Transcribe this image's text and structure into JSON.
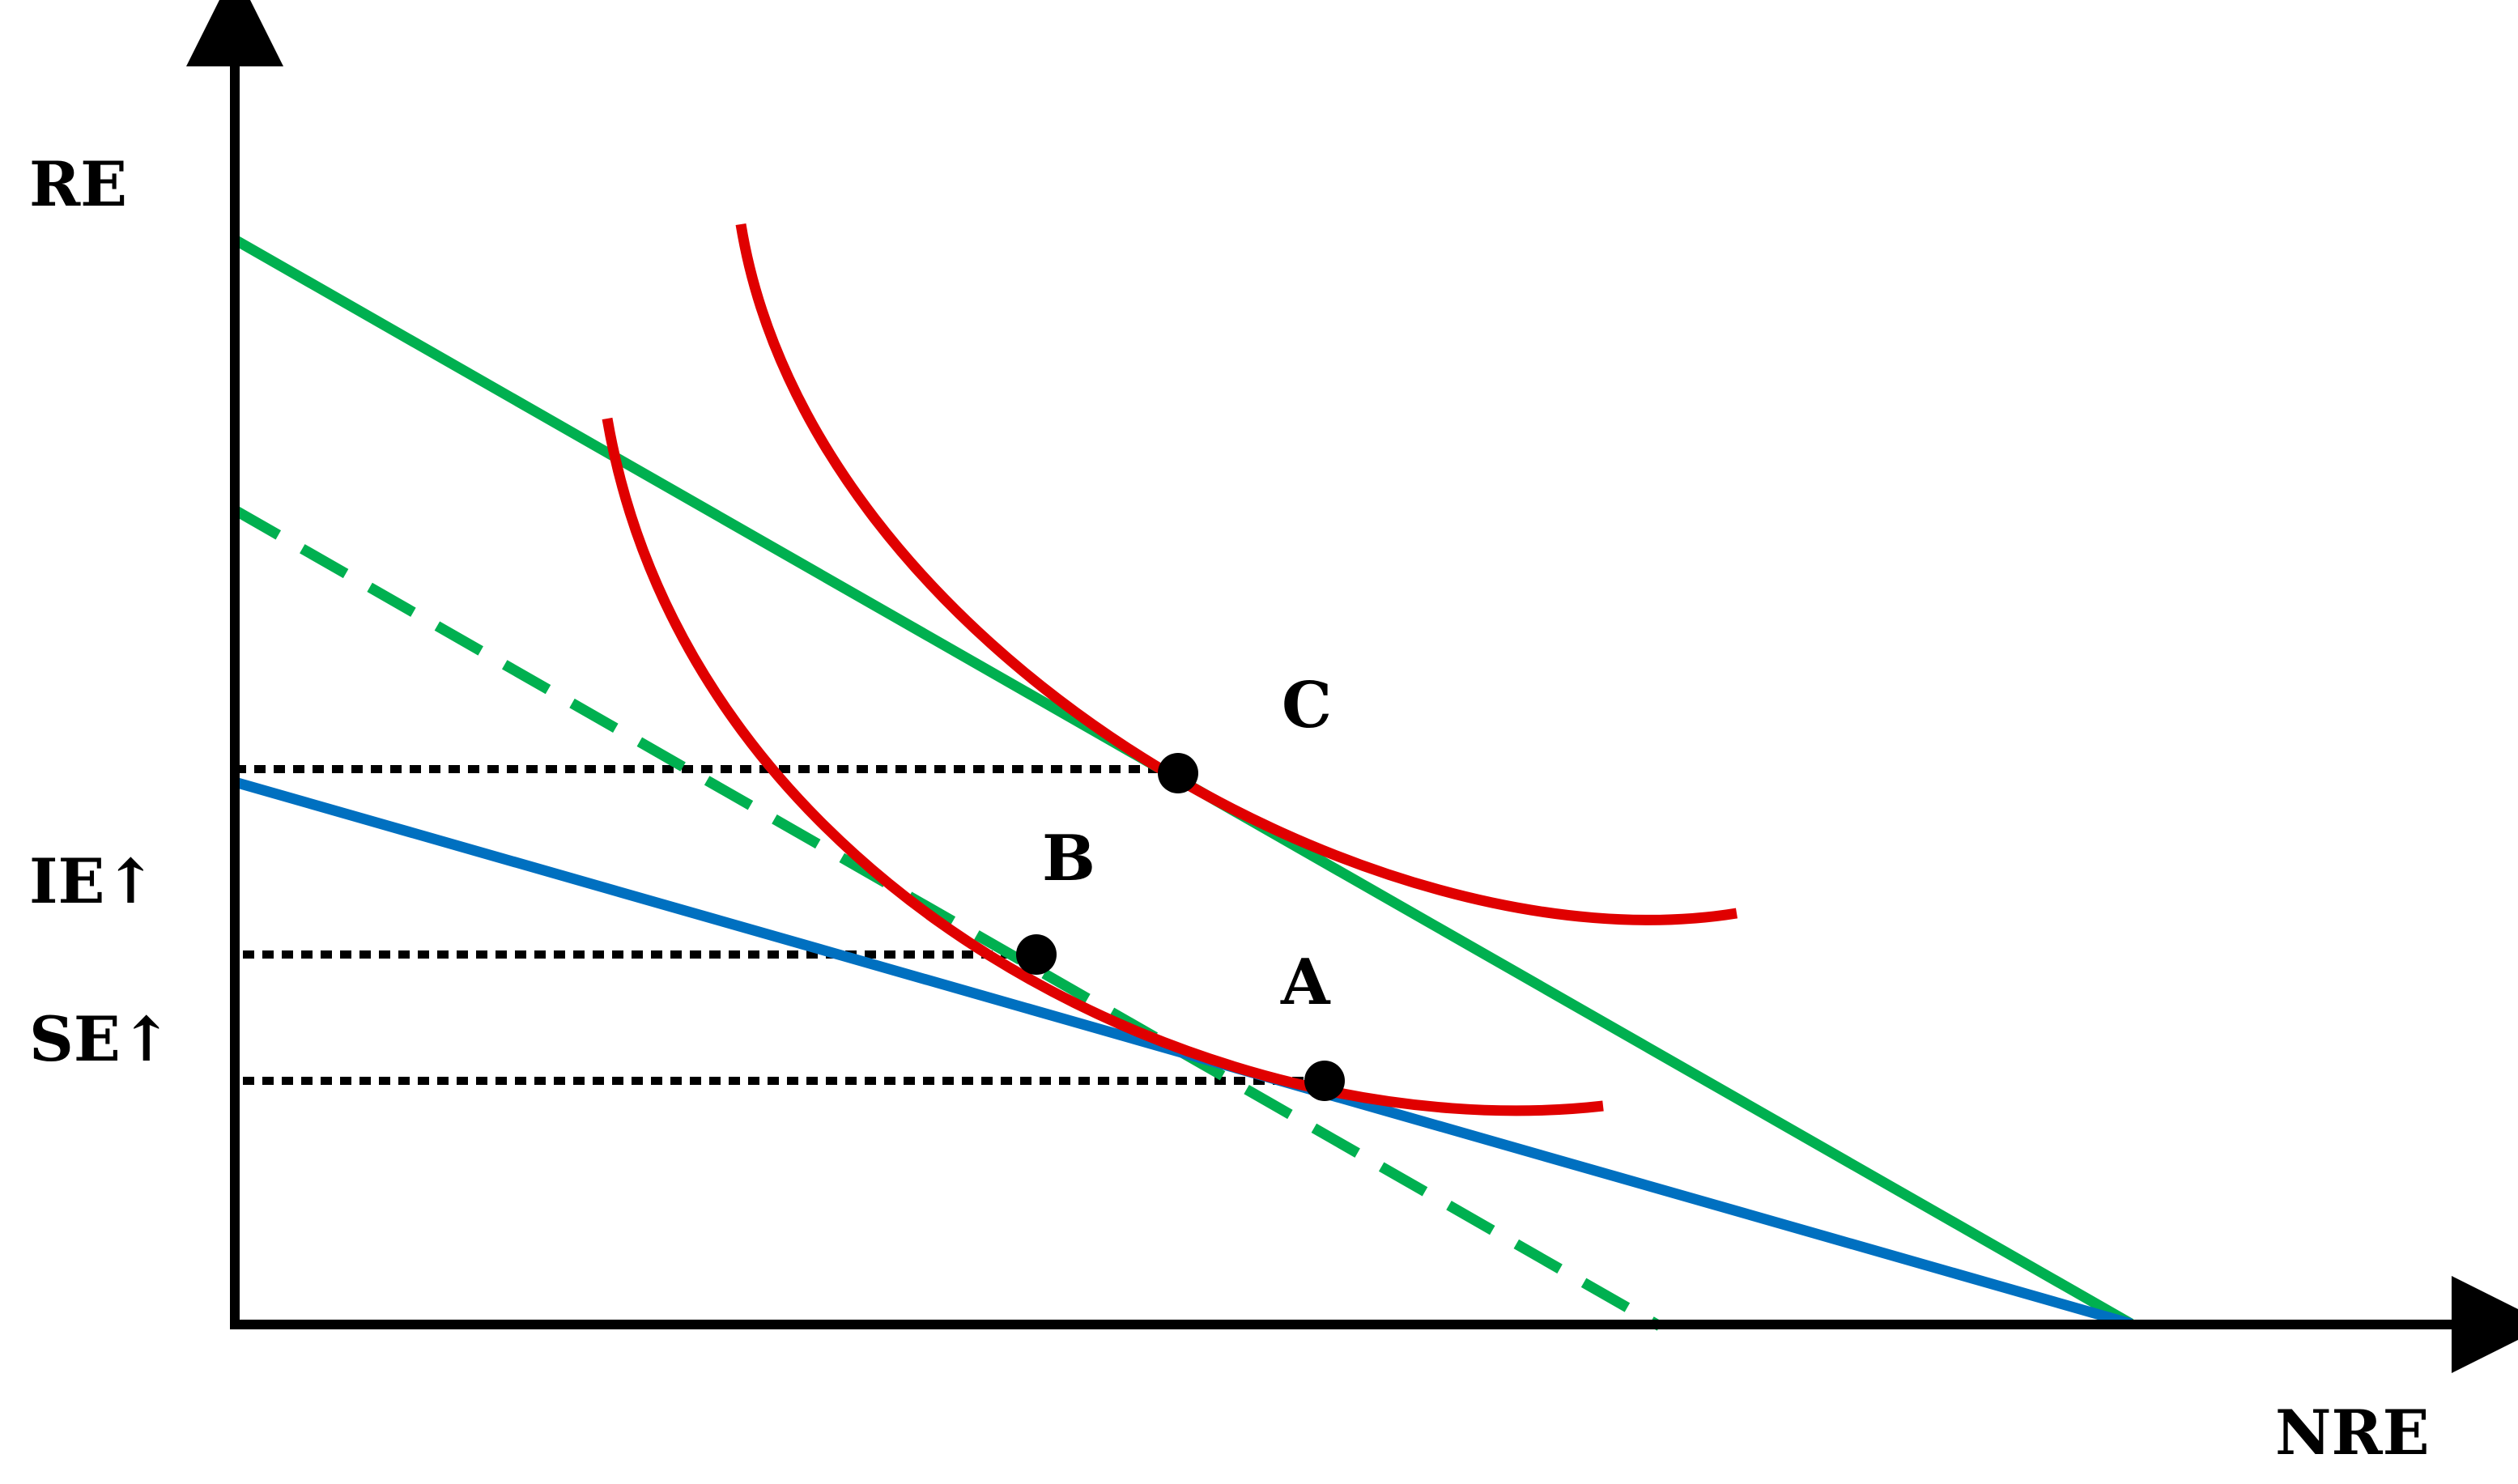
{
  "diagram": {
    "axes": {
      "y_label": "RE",
      "x_label": "NRE"
    },
    "effect_labels": {
      "income_effect": "IE↑",
      "substitution_effect": "SE↑"
    },
    "points": {
      "a": "A",
      "b": "B",
      "c": "C"
    },
    "colors": {
      "axis": "#000000",
      "budget_line_original": "#0070c0",
      "budget_line_new": "#00b050",
      "budget_line_compensated": "#00b050",
      "indifference_curve": "#e00000",
      "guide_lines": "#000000",
      "points": "#000000"
    }
  }
}
